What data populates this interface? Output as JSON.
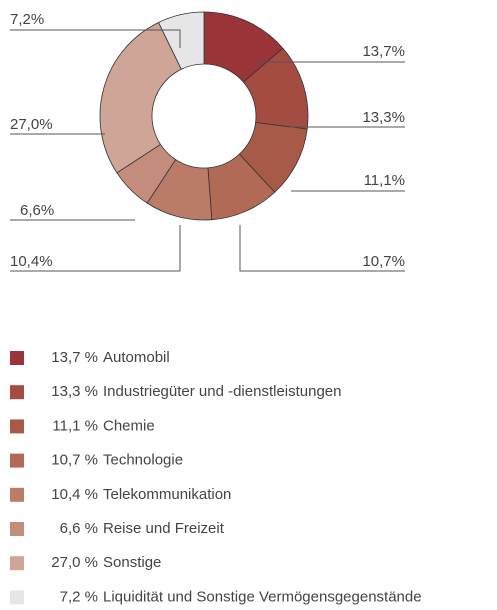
{
  "chart_data": {
    "type": "donut",
    "categories": [
      "Automobil",
      "Industriegüter und -dienstleistungen",
      "Chemie",
      "Technologie",
      "Telekommunikation",
      "Reise und Freizeit",
      "Sonstige",
      "Liquidität und Sonstige Vermögensgegenstände"
    ],
    "values": [
      13.7,
      13.3,
      11.1,
      10.7,
      10.4,
      6.6,
      27.0,
      7.2
    ],
    "value_labels": [
      "13,7%",
      "13,3%",
      "11,1%",
      "10,7%",
      "10,4%",
      "6,6%",
      "27,0%",
      "7,2%"
    ],
    "legend_value_labels": [
      "13,7 %",
      "13,3 %",
      "11,1 %",
      "10,7 %",
      "10,4 %",
      "6,6 %",
      "27,0 %",
      "7,2 %"
    ],
    "colors": [
      "#9b3438",
      "#a44c42",
      "#a85a48",
      "#b06a56",
      "#bb7b69",
      "#c38c7c",
      "#cfa597",
      "#e6e6e6"
    ]
  }
}
